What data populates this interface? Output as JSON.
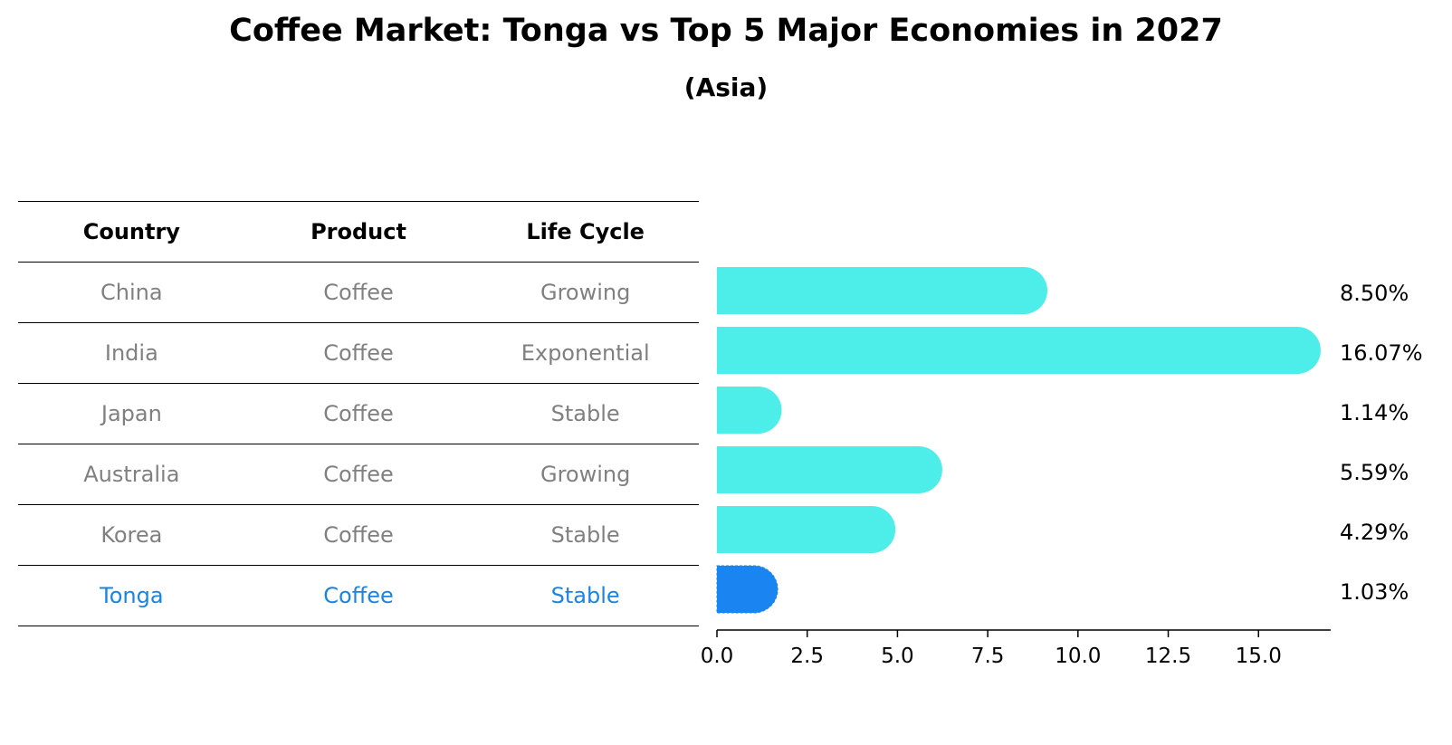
{
  "title": "Coffee Market: Tonga vs Top 5 Major Economies in 2027",
  "subtitle": "(Asia)",
  "table": {
    "headers": [
      "Country",
      "Product",
      "Life Cycle"
    ],
    "rows": [
      {
        "country": "China",
        "product": "Coffee",
        "life_cycle": "Growing"
      },
      {
        "country": "India",
        "product": "Coffee",
        "life_cycle": "Exponential"
      },
      {
        "country": "Japan",
        "product": "Coffee",
        "life_cycle": "Stable"
      },
      {
        "country": "Australia",
        "product": "Coffee",
        "life_cycle": "Growing"
      },
      {
        "country": "Korea",
        "product": "Coffee",
        "life_cycle": "Stable"
      },
      {
        "country": "Tonga",
        "product": "Coffee",
        "life_cycle": "Stable"
      }
    ]
  },
  "chart_data": {
    "type": "bar",
    "orientation": "horizontal",
    "categories": [
      "China",
      "India",
      "Japan",
      "Australia",
      "Korea",
      "Tonga"
    ],
    "values": [
      8.5,
      16.07,
      1.14,
      5.59,
      4.29,
      1.03
    ],
    "value_labels": [
      "8.50%",
      "16.07%",
      "1.14%",
      "5.59%",
      "4.29%",
      "1.03%"
    ],
    "highlight": "Tonga",
    "xlim": [
      0,
      17
    ],
    "xticks": [
      0.0,
      2.5,
      5.0,
      7.5,
      10.0,
      12.5,
      15.0
    ],
    "xtick_labels": [
      "0.0",
      "2.5",
      "5.0",
      "7.5",
      "10.0",
      "12.5",
      "15.0"
    ],
    "colors": {
      "bar": "#4deeea",
      "highlight": "#1a84f0",
      "highlight_text": "#1a84e0"
    }
  }
}
